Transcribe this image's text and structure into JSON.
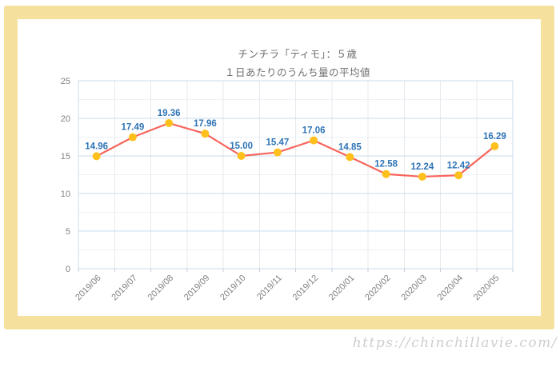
{
  "chart": {
    "title": "チンチラ「ティモ」：５歳",
    "subtitle": "１日あたりのうんち量の平均値"
  },
  "watermark": {
    "text": "https://chinchillavie.com/"
  },
  "chart_data": {
    "type": "line",
    "title": "チンチラ「ティモ」：５歳",
    "subtitle": "１日あたりのうんち量の平均値",
    "categories": [
      "2019/06",
      "2019/07",
      "2019/08",
      "2019/09",
      "2019/10",
      "2019/11",
      "2019/12",
      "2020/01",
      "2020/02",
      "2020/03",
      "2020/04",
      "2020/05"
    ],
    "values": [
      14.96,
      17.49,
      19.36,
      17.96,
      15.0,
      15.47,
      17.06,
      14.85,
      12.58,
      12.24,
      12.42,
      16.29
    ],
    "xlabel": "",
    "ylabel": "",
    "ylim": [
      0,
      25
    ],
    "ytick_interval": 5,
    "yminor_interval": 2.5,
    "grid": true,
    "legend": "none",
    "data_label_decimals": 2,
    "colors": {
      "line": "#F8655C",
      "marker": "#FFC01E",
      "data_label": "#2E74B6",
      "grid_major": "#C7DCEF",
      "grid_minor": "#EDF1F6",
      "grid_vertical": "#E7EAEE",
      "tick": "#C3CCD6",
      "axis_text": "#808080"
    }
  }
}
